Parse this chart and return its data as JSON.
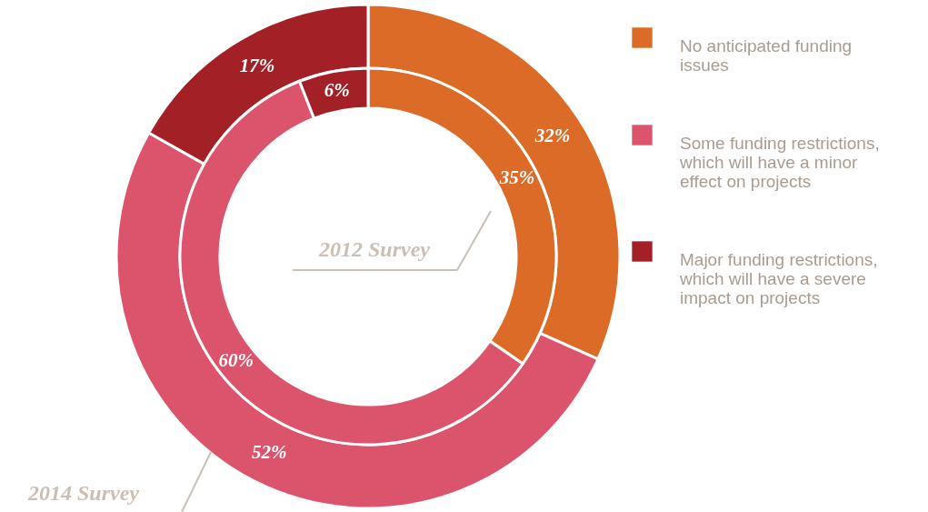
{
  "chart_data": {
    "type": "donut",
    "categories": [
      "No anticipated funding issues",
      "Some funding restrictions, which will have a minor effect on projects",
      "Major funding restrictions, which will have a severe impact on projects"
    ],
    "colors": [
      "#dc6b27",
      "#dc546c",
      "#a32126"
    ],
    "legend": "right",
    "series": [
      {
        "name": "2014 Survey",
        "values": [
          32,
          52,
          17
        ],
        "value_labels": [
          "32%",
          "52%",
          "17%"
        ]
      },
      {
        "name": "2012 Survey",
        "values": [
          35,
          60,
          6
        ],
        "value_labels": [
          "35%",
          "60%",
          "6%"
        ]
      }
    ]
  }
}
